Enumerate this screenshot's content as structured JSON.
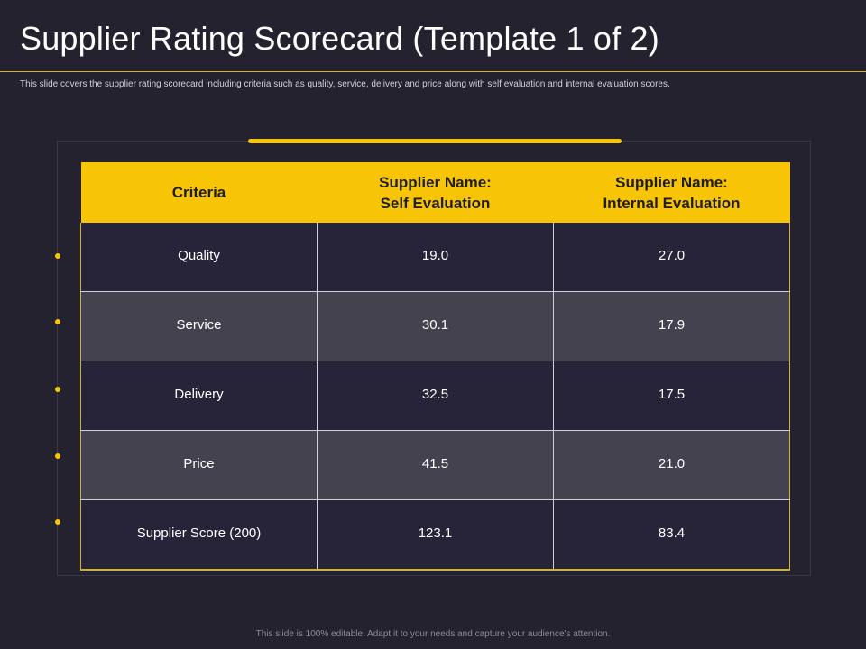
{
  "slide": {
    "title": "Supplier Rating Scorecard (Template 1 of 2)",
    "subtitle": "This slide covers the supplier rating scorecard including criteria such as quality, service, delivery and price along with self evaluation and internal evaluation scores.",
    "footer": "This slide is 100% editable. Adapt it to your needs and capture your audience's attention."
  },
  "table": {
    "headers": {
      "criteria": "Criteria",
      "self_line1": "Supplier Name:",
      "self_line2": "Self Evaluation",
      "internal_line1": "Supplier Name:",
      "internal_line2": "Internal Evaluation"
    },
    "rows": [
      {
        "criteria": "Quality",
        "self": "19.0",
        "internal": "27.0"
      },
      {
        "criteria": "Service",
        "self": "30.1",
        "internal": "17.9"
      },
      {
        "criteria": "Delivery",
        "self": "32.5",
        "internal": "17.5"
      },
      {
        "criteria": "Price",
        "self": "41.5",
        "internal": "21.0"
      },
      {
        "criteria": "Supplier Score  (200)",
        "self": "123.1",
        "internal": "83.4"
      }
    ]
  },
  "colors": {
    "background": "#25222f",
    "accent": "#f7c505",
    "row_dark": "#27243a",
    "row_light": "#45424f"
  }
}
